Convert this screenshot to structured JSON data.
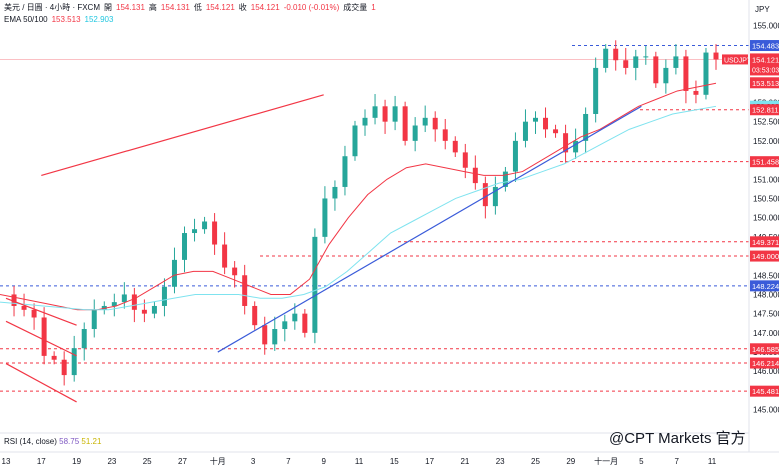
{
  "header": {
    "symbol_line": "美元 / 日圓 · 4小時 · FXCM",
    "ohlc": {
      "open_label": "開",
      "open": "154.131",
      "high_label": "高",
      "high": "154.131",
      "low_label": "低",
      "low": "154.121",
      "close_label": "收",
      "close": "154.121",
      "change": "-0.010 (-0.01%)",
      "volume_label": "成交量",
      "volume": "1"
    },
    "ema_label": "EMA 50/100",
    "ema50": "153.513",
    "ema100": "152.903"
  },
  "rsi": {
    "label": "RSI (14, close)",
    "v1": "58.75",
    "v2": "51.21"
  },
  "watermark": "@CPT Markets 官方",
  "colors": {
    "up": "#26a69a",
    "down": "#f23645",
    "trend": "#3a5bd9",
    "ema50": "#f23645",
    "ema100": "#7fe3ef",
    "resist": "#3a5bd9"
  },
  "chart_data": {
    "type": "candlestick",
    "axis_unit": "JPY",
    "ylim": [
      144.6,
      155.2
    ],
    "y_ticks": [
      "155.000",
      "154.500",
      "154.000",
      "153.500",
      "153.000",
      "152.500",
      "152.000",
      "151.500",
      "151.000",
      "150.500",
      "150.000",
      "149.500",
      "149.000",
      "148.500",
      "148.000",
      "147.500",
      "147.000",
      "146.500",
      "146.000",
      "145.500",
      "145.000"
    ],
    "x_ticks": [
      "13",
      "17",
      "19",
      "23",
      "25",
      "27",
      "十月",
      "3",
      "7",
      "9",
      "11",
      "15",
      "17",
      "21",
      "23",
      "25",
      "29",
      "十一月",
      "5",
      "7",
      "11"
    ],
    "price_tag": {
      "label": "USDJPY",
      "value": "154.121",
      "countdown": "03:53:03"
    },
    "levels": [
      {
        "value": 154.483,
        "label": "154.483",
        "kind": "resistance"
      },
      {
        "value": 153.513,
        "label": "153.513",
        "kind": "ema50"
      },
      {
        "value": 152.903,
        "label": "152.903",
        "kind": "ema100"
      },
      {
        "value": 152.811,
        "label": "152.811",
        "kind": "support"
      },
      {
        "value": 151.458,
        "label": "151.458",
        "kind": "support"
      },
      {
        "value": 149.371,
        "label": "149.371",
        "kind": "support"
      },
      {
        "value": 149.0,
        "label": "149.000",
        "kind": "support"
      },
      {
        "value": 148.224,
        "label": "148.224",
        "kind": "resistance"
      },
      {
        "value": 146.585,
        "label": "146.585",
        "kind": "support"
      },
      {
        "value": 146.214,
        "label": "146.214",
        "kind": "support"
      },
      {
        "value": 145.481,
        "label": "145.481",
        "kind": "support"
      }
    ],
    "candle_path": [
      148.0,
      147.7,
      147.6,
      147.4,
      146.4,
      146.3,
      145.9,
      146.6,
      147.1,
      147.6,
      147.7,
      147.8,
      148.0,
      147.6,
      147.5,
      147.7,
      148.2,
      148.9,
      149.6,
      149.7,
      149.9,
      149.3,
      148.7,
      148.5,
      147.7,
      147.2,
      146.7,
      147.1,
      147.3,
      147.5,
      147.0,
      149.5,
      150.5,
      150.8,
      151.6,
      152.4,
      152.6,
      152.9,
      152.5,
      152.9,
      152.0,
      152.4,
      152.6,
      152.3,
      152.0,
      151.7,
      151.3,
      150.9,
      150.3,
      150.8,
      151.2,
      152.0,
      152.5,
      152.6,
      152.3,
      152.2,
      151.7,
      152.0,
      152.7,
      153.9,
      154.4,
      154.1,
      153.9,
      154.2,
      154.2,
      153.5,
      153.9,
      154.2,
      153.3,
      153.2,
      154.3,
      154.12
    ],
    "series": [
      {
        "name": "EMA 50",
        "values": [
          148.0,
          147.9,
          147.8,
          147.7,
          147.6,
          147.6,
          147.7,
          147.9,
          148.2,
          148.5,
          148.6,
          148.6,
          148.4,
          148.2,
          148.0,
          148.0,
          148.4,
          149.3,
          150.0,
          150.6,
          151.0,
          151.3,
          151.4,
          151.3,
          151.2,
          151.1,
          151.1,
          151.2,
          151.5,
          151.8,
          152.1,
          152.3,
          152.6,
          152.9,
          153.1,
          153.3,
          153.4,
          153.5
        ]
      },
      {
        "name": "EMA 100",
        "values": [
          147.8,
          147.75,
          147.7,
          147.65,
          147.6,
          147.6,
          147.7,
          147.8,
          147.9,
          148.0,
          148.0,
          148.0,
          147.9,
          147.9,
          148.0,
          148.2,
          148.6,
          149.1,
          149.6,
          149.9,
          150.2,
          150.5,
          150.7,
          150.9,
          151.0,
          151.2,
          151.4,
          151.7,
          152.0,
          152.3,
          152.5,
          152.7,
          152.8,
          152.9
        ]
      }
    ],
    "trendlines": [
      {
        "kind": "uptrend",
        "from": [
          "十月",
          146.5
        ],
        "to": [
          "5",
          152.9
        ]
      },
      {
        "kind": "downtrend",
        "from": [
          "9",
          153.2
        ],
        "to": [
          "17",
          151.1
        ]
      },
      {
        "kind": "channel-top",
        "from": [
          "13",
          147.9
        ],
        "to": [
          "19",
          147.2
        ]
      },
      {
        "kind": "channel-mid",
        "from": [
          "13",
          147.3
        ],
        "to": [
          "19",
          146.4
        ]
      },
      {
        "kind": "channel-bottom",
        "from": [
          "13",
          146.2
        ],
        "to": [
          "19",
          145.2
        ]
      }
    ],
    "xlabel": "",
    "ylabel": "",
    "grid": false
  }
}
